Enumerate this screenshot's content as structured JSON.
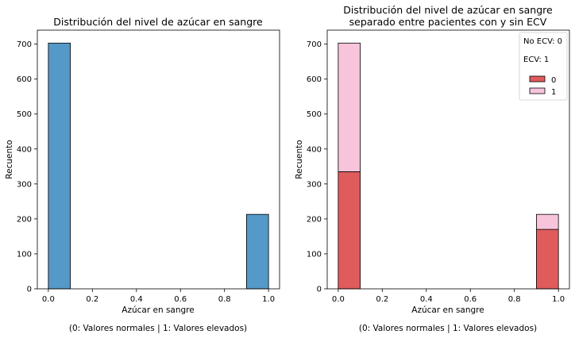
{
  "colors": {
    "left_bar": "#5499c7",
    "series_0": "#e05c5c",
    "series_1": "#f8c4dc",
    "axes": "#000000",
    "background": "#ffffff"
  },
  "chart_data": [
    {
      "type": "bar",
      "title": "Distribución del nivel de azúcar en sangre",
      "xlabel": "Azúcar en sangre",
      "ylabel": "Recuento",
      "caption": "(0: Valores normales | 1: Valores elevados)",
      "xlim": [
        -0.05,
        1.05
      ],
      "ylim": [
        0,
        740
      ],
      "xticks": [
        "0.0",
        "0.2",
        "0.4",
        "0.6",
        "0.8",
        "1.0"
      ],
      "yticks": [
        "0",
        "100",
        "200",
        "300",
        "400",
        "500",
        "600",
        "700"
      ],
      "bins": [
        {
          "x0": 0.0,
          "x1": 0.1,
          "value": 703
        },
        {
          "x0": 0.9,
          "x1": 1.0,
          "value": 213
        }
      ],
      "grid": false
    },
    {
      "type": "bar",
      "stacked": true,
      "title_lines": [
        "Distribución del nivel de azúcar en sangre",
        "separado entre pacientes con y sin ECV"
      ],
      "xlabel": "Azúcar en sangre",
      "ylabel": "Recuento",
      "caption": "(0: Valores normales | 1: Valores elevados)",
      "xlim": [
        -0.05,
        1.05
      ],
      "ylim": [
        0,
        740
      ],
      "xticks": [
        "0.0",
        "0.2",
        "0.4",
        "0.6",
        "0.8",
        "1.0"
      ],
      "yticks": [
        "0",
        "100",
        "200",
        "300",
        "400",
        "500",
        "600",
        "700"
      ],
      "bins": [
        {
          "x0": 0.0,
          "x1": 0.1
        },
        {
          "x0": 0.9,
          "x1": 1.0
        }
      ],
      "series": [
        {
          "name": "0",
          "values": [
            335,
            170
          ]
        },
        {
          "name": "1",
          "values": [
            368,
            43
          ]
        }
      ],
      "legend": {
        "placement": "top-right",
        "notes": [
          "No ECV: 0",
          "ECV: 1"
        ],
        "entries": [
          "0",
          "1"
        ]
      },
      "grid": false
    }
  ]
}
